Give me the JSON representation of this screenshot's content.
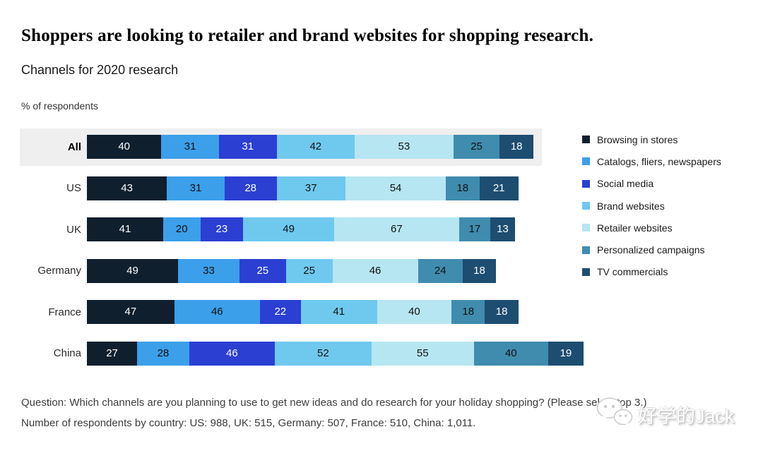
{
  "chart_data": {
    "type": "bar",
    "orientation": "horizontal",
    "stacked": true,
    "title": "Shoppers are looking to retailer and brand websites for shopping research.",
    "subtitle": "Channels for 2020 research",
    "unit_label": "% of respondents",
    "value_labels": "inside",
    "legend_position": "right",
    "grid": false,
    "categories": [
      "All",
      "US",
      "UK",
      "Germany",
      "France",
      "China"
    ],
    "highlighted_category": "All",
    "series": [
      {
        "name": "Browsing in stores",
        "color": "#101f2d",
        "text_color": "#ffffff",
        "values": [
          40,
          43,
          41,
          49,
          47,
          27
        ]
      },
      {
        "name": "Catalogs, fliers, newspapers",
        "color": "#3b9fea",
        "text_color": "#111111",
        "values": [
          31,
          31,
          20,
          33,
          46,
          28
        ]
      },
      {
        "name": "Social media",
        "color": "#2b3fd3",
        "text_color": "#ffffff",
        "values": [
          31,
          28,
          23,
          25,
          22,
          46
        ]
      },
      {
        "name": "Brand websites",
        "color": "#6fc9ee",
        "text_color": "#111111",
        "values": [
          42,
          37,
          49,
          25,
          41,
          52
        ]
      },
      {
        "name": "Retailer websites",
        "color": "#b6e6f2",
        "text_color": "#111111",
        "values": [
          53,
          54,
          67,
          46,
          40,
          55
        ]
      },
      {
        "name": "Personalized campaigns",
        "color": "#3f8cae",
        "text_color": "#111111",
        "values": [
          25,
          18,
          17,
          24,
          18,
          40
        ]
      },
      {
        "name": "TV commercials",
        "color": "#1d4d71",
        "text_color": "#ffffff",
        "values": [
          18,
          21,
          13,
          18,
          18,
          19
        ]
      }
    ],
    "highlight_band_color": "#efefef"
  },
  "footer": {
    "question": "Question: Which channels are you planning to use to get new ideas and do research for your holiday shopping? (Please select top 3.)",
    "respondents": "Number of respondents by country: US: 988, UK: 515, Germany: 507, France: 510, China: 1,011."
  },
  "watermark": {
    "text": "好学的Jack",
    "icon": "wechat-icon"
  }
}
